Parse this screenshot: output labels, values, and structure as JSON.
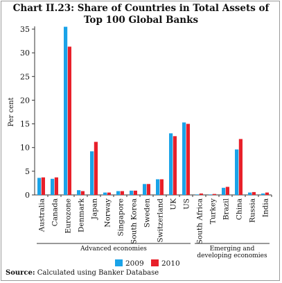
{
  "title_line1": "Chart II.23: Share of Countries in Total Assets of",
  "title_line2": "Top 100 Global Banks",
  "source_label": "Source:",
  "source_text": "Calculated using Banker Database",
  "colors": {
    "s2009": "#1aa3e8",
    "s2010": "#e8202a",
    "axis": "#333333"
  },
  "chart_data": {
    "type": "bar",
    "title": "Chart II.23: Share of Countries in Total Assets of Top 100 Global Banks",
    "xlabel": "",
    "ylabel": "Per cent",
    "ylim": [
      0,
      35
    ],
    "yticks": [
      0,
      5,
      10,
      15,
      20,
      25,
      30,
      35
    ],
    "grid": false,
    "legend_position": "bottom",
    "categories": [
      "Australia",
      "Canada",
      "Eurozone",
      "Denmark",
      "Japan",
      "Norway",
      "Singapore",
      "South Korea",
      "Sweden",
      "Switzerland",
      "UK",
      "US",
      "South Africa",
      "Turkey",
      "Brazil",
      "China",
      "Russia",
      "India"
    ],
    "groups": [
      {
        "label_lines": [
          "Advanced economies"
        ],
        "categories": [
          "Australia",
          "Canada",
          "Eurozone",
          "Denmark",
          "Japan",
          "Norway",
          "Singapore",
          "South Korea",
          "Sweden",
          "Switzerland",
          "UK",
          "US"
        ]
      },
      {
        "label_lines": [
          "Emerging and",
          "developing economies"
        ],
        "categories": [
          "South Africa",
          "Turkey",
          "Brazil",
          "China",
          "Russia",
          "India"
        ]
      }
    ],
    "series": [
      {
        "name": "2009",
        "values": [
          3.6,
          3.4,
          35.5,
          1.0,
          9.2,
          0.5,
          0.8,
          0.9,
          2.3,
          3.3,
          13.0,
          15.3,
          0.1,
          0.1,
          1.5,
          9.6,
          0.5,
          0.3
        ]
      },
      {
        "name": "2010",
        "values": [
          3.7,
          3.7,
          31.3,
          0.8,
          11.2,
          0.5,
          0.8,
          0.9,
          2.3,
          3.3,
          12.4,
          15.0,
          0.3,
          0.2,
          1.7,
          11.8,
          0.6,
          0.5
        ]
      }
    ]
  }
}
